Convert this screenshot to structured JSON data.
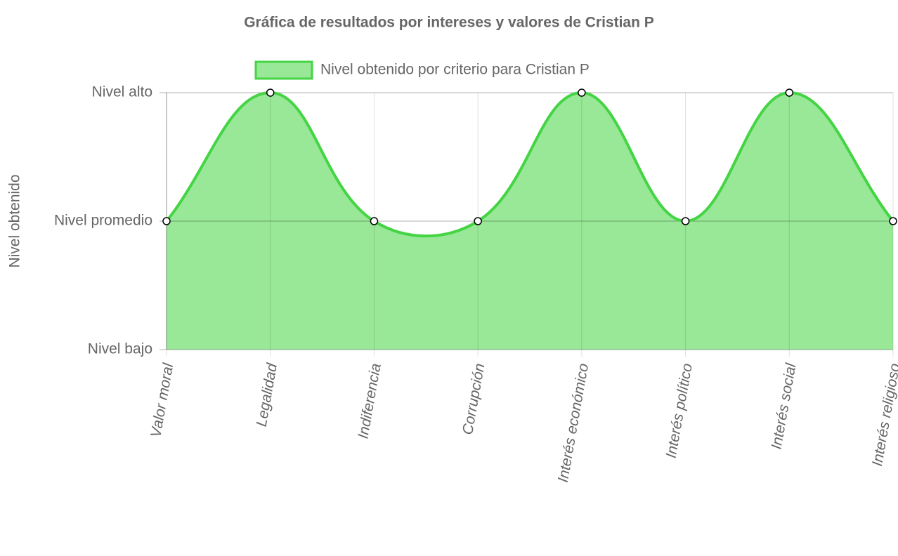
{
  "chart_data": {
    "type": "line",
    "title": "Gráfica de resultados por intereses y valores de Cristian P",
    "y_axis_label": "Nivel obtenido",
    "categories": [
      "Valor moral",
      "Legalidad",
      "Indiferencia",
      "Corrupción",
      "Interés económico",
      "Interés político",
      "Interés social",
      "Interés religioso"
    ],
    "series": [
      {
        "name": "Nivel obtenido por criterio para Cristian P",
        "color": "#44d444",
        "fill": "#98e897",
        "values": [
          2,
          3,
          2,
          2,
          3,
          2,
          3,
          2
        ]
      }
    ],
    "ylim": [
      1,
      3
    ],
    "yticks": [
      {
        "value": 1,
        "label": "Nivel bajo"
      },
      {
        "value": 2,
        "label": "Nivel promedio"
      },
      {
        "value": 3,
        "label": "Nivel alto"
      }
    ],
    "grid": true,
    "legend": "top"
  }
}
